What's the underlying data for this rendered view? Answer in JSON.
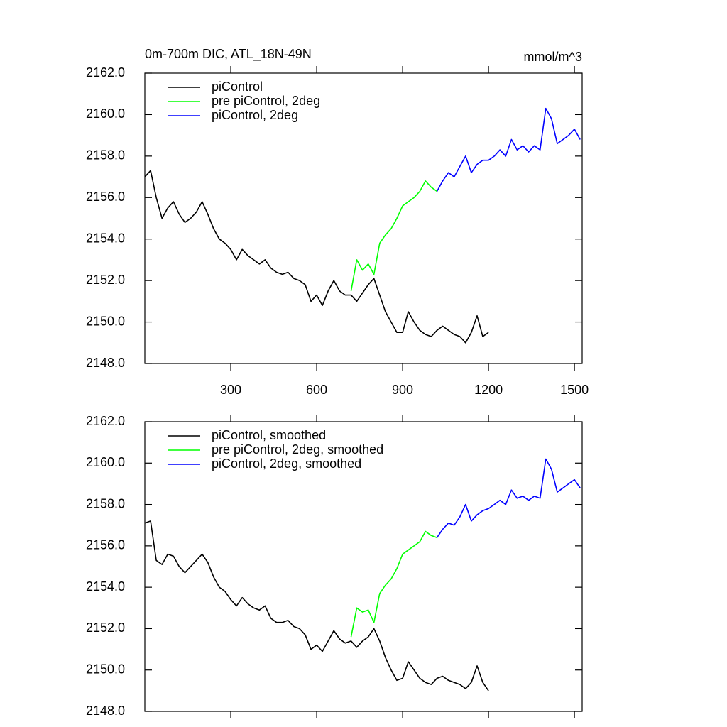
{
  "chart_data": [
    {
      "type": "line",
      "title": "0m-700m DIC, ATL_18N-49N",
      "subtitle": "mmol/m^3",
      "xlim": [
        0,
        1527
      ],
      "xticks": [
        300,
        600,
        900,
        1200,
        1500
      ],
      "show_xtick_labels": true,
      "ylim": [
        2148,
        2162
      ],
      "yticks": [
        {
          "value": 2148,
          "label": "2148.0"
        },
        {
          "value": 2150,
          "label": "2150.0"
        },
        {
          "value": 2152,
          "label": "2152.0"
        },
        {
          "value": 2154,
          "label": "2154.0"
        },
        {
          "value": 2156,
          "label": "2156.0"
        },
        {
          "value": 2158,
          "label": "2158.0"
        },
        {
          "value": 2160,
          "label": "2160.0"
        },
        {
          "value": 2162,
          "label": "2162.0"
        }
      ],
      "legend": "upper left",
      "series": [
        {
          "name": "piControl",
          "color": "#000000",
          "x": [
            0,
            20,
            40,
            60,
            80,
            100,
            120,
            140,
            160,
            180,
            200,
            220,
            240,
            260,
            280,
            300,
            320,
            340,
            360,
            380,
            400,
            420,
            440,
            460,
            480,
            500,
            520,
            540,
            560,
            580,
            600,
            620,
            640,
            660,
            680,
            700,
            720,
            740,
            760,
            780,
            800,
            820,
            840,
            860,
            880,
            900,
            920,
            940,
            960,
            980,
            1000,
            1020,
            1040,
            1060,
            1080,
            1100,
            1120,
            1140,
            1160,
            1180,
            1200
          ],
          "values": [
            2157.0,
            2157.3,
            2156.0,
            2155.0,
            2155.5,
            2155.8,
            2155.2,
            2154.8,
            2155.0,
            2155.3,
            2155.8,
            2155.2,
            2154.5,
            2154.0,
            2153.8,
            2153.5,
            2153.0,
            2153.5,
            2153.2,
            2153.0,
            2152.8,
            2153.0,
            2152.6,
            2152.4,
            2152.3,
            2152.4,
            2152.1,
            2152.0,
            2151.8,
            2151.0,
            2151.3,
            2150.8,
            2151.5,
            2152.0,
            2151.5,
            2151.3,
            2151.3,
            2151.0,
            2151.4,
            2151.8,
            2152.1,
            2151.3,
            2150.5,
            2150.0,
            2149.5,
            2149.5,
            2150.5,
            2150.0,
            2149.6,
            2149.4,
            2149.3,
            2149.6,
            2149.8,
            2149.6,
            2149.4,
            2149.3,
            2149.0,
            2149.5,
            2150.3,
            2149.3,
            2149.5
          ]
        },
        {
          "name": "pre piControl, 2deg",
          "color": "#00ff00",
          "x": [
            720,
            740,
            760,
            780,
            800,
            820,
            840,
            860,
            880,
            900,
            920,
            940,
            960,
            980,
            1000,
            1020
          ],
          "values": [
            2151.5,
            2153.0,
            2152.5,
            2152.8,
            2152.3,
            2153.8,
            2154.2,
            2154.5,
            2155.0,
            2155.6,
            2155.8,
            2156.0,
            2156.3,
            2156.8,
            2156.5,
            2156.3
          ]
        },
        {
          "name": "piControl, 2deg",
          "color": "#0000ff",
          "x": [
            1020,
            1040,
            1060,
            1080,
            1100,
            1120,
            1140,
            1160,
            1180,
            1200,
            1220,
            1240,
            1260,
            1280,
            1300,
            1320,
            1340,
            1360,
            1380,
            1400,
            1420,
            1440,
            1460,
            1480,
            1500,
            1520
          ],
          "values": [
            2156.3,
            2156.8,
            2157.2,
            2157.0,
            2157.5,
            2158.0,
            2157.2,
            2157.6,
            2157.8,
            2157.8,
            2158.0,
            2158.3,
            2158.0,
            2158.8,
            2158.3,
            2158.5,
            2158.2,
            2158.5,
            2158.3,
            2160.3,
            2159.8,
            2158.6,
            2158.8,
            2159.0,
            2159.3,
            2158.8
          ]
        }
      ]
    },
    {
      "type": "line",
      "xlim": [
        0,
        1527
      ],
      "xticks": [
        300,
        600,
        900,
        1200,
        1500
      ],
      "show_xtick_labels": false,
      "ylim": [
        2148,
        2162
      ],
      "yticks": [
        {
          "value": 2148,
          "label": "2148.0"
        },
        {
          "value": 2150,
          "label": "2150.0"
        },
        {
          "value": 2152,
          "label": "2152.0"
        },
        {
          "value": 2154,
          "label": "2154.0"
        },
        {
          "value": 2156,
          "label": "2156.0"
        },
        {
          "value": 2158,
          "label": "2158.0"
        },
        {
          "value": 2160,
          "label": "2160.0"
        },
        {
          "value": 2162,
          "label": "2162.0"
        }
      ],
      "legend": "upper left",
      "series": [
        {
          "name": "piControl, smoothed",
          "color": "#000000",
          "x": [
            0,
            20,
            40,
            60,
            80,
            100,
            120,
            140,
            160,
            180,
            200,
            220,
            240,
            260,
            280,
            300,
            320,
            340,
            360,
            380,
            400,
            420,
            440,
            460,
            480,
            500,
            520,
            540,
            560,
            580,
            600,
            620,
            640,
            660,
            680,
            700,
            720,
            740,
            760,
            780,
            800,
            820,
            840,
            860,
            880,
            900,
            920,
            940,
            960,
            980,
            1000,
            1020,
            1040,
            1060,
            1080,
            1100,
            1120,
            1140,
            1160,
            1180,
            1200
          ],
          "values": [
            2157.1,
            2157.2,
            2155.3,
            2155.1,
            2155.6,
            2155.5,
            2155.0,
            2154.7,
            2155.0,
            2155.3,
            2155.6,
            2155.2,
            2154.5,
            2154.0,
            2153.8,
            2153.4,
            2153.1,
            2153.5,
            2153.2,
            2153.0,
            2152.9,
            2153.1,
            2152.5,
            2152.3,
            2152.3,
            2152.4,
            2152.1,
            2152.0,
            2151.7,
            2151.0,
            2151.2,
            2150.9,
            2151.4,
            2151.9,
            2151.5,
            2151.3,
            2151.4,
            2151.1,
            2151.4,
            2151.6,
            2152.0,
            2151.4,
            2150.6,
            2150.0,
            2149.5,
            2149.6,
            2150.4,
            2150.0,
            2149.6,
            2149.4,
            2149.3,
            2149.6,
            2149.7,
            2149.5,
            2149.4,
            2149.3,
            2149.1,
            2149.4,
            2150.2,
            2149.4,
            2149.0
          ]
        },
        {
          "name": "pre piControl, 2deg, smoothed",
          "color": "#00ff00",
          "x": [
            720,
            740,
            760,
            780,
            800,
            820,
            840,
            860,
            880,
            900,
            920,
            940,
            960,
            980,
            1000,
            1020
          ],
          "values": [
            2151.6,
            2153.0,
            2152.8,
            2152.9,
            2152.3,
            2153.7,
            2154.1,
            2154.4,
            2154.9,
            2155.6,
            2155.8,
            2156.0,
            2156.2,
            2156.7,
            2156.5,
            2156.4
          ]
        },
        {
          "name": "piControl, 2deg, smoothed",
          "color": "#0000ff",
          "x": [
            1020,
            1040,
            1060,
            1080,
            1100,
            1120,
            1140,
            1160,
            1180,
            1200,
            1220,
            1240,
            1260,
            1280,
            1300,
            1320,
            1340,
            1360,
            1380,
            1400,
            1420,
            1440,
            1460,
            1480,
            1500,
            1520
          ],
          "values": [
            2156.4,
            2156.8,
            2157.1,
            2157.0,
            2157.4,
            2158.0,
            2157.2,
            2157.5,
            2157.7,
            2157.8,
            2158.0,
            2158.2,
            2158.0,
            2158.7,
            2158.3,
            2158.4,
            2158.2,
            2158.4,
            2158.3,
            2160.2,
            2159.7,
            2158.6,
            2158.8,
            2159.0,
            2159.2,
            2158.8
          ]
        }
      ]
    }
  ]
}
